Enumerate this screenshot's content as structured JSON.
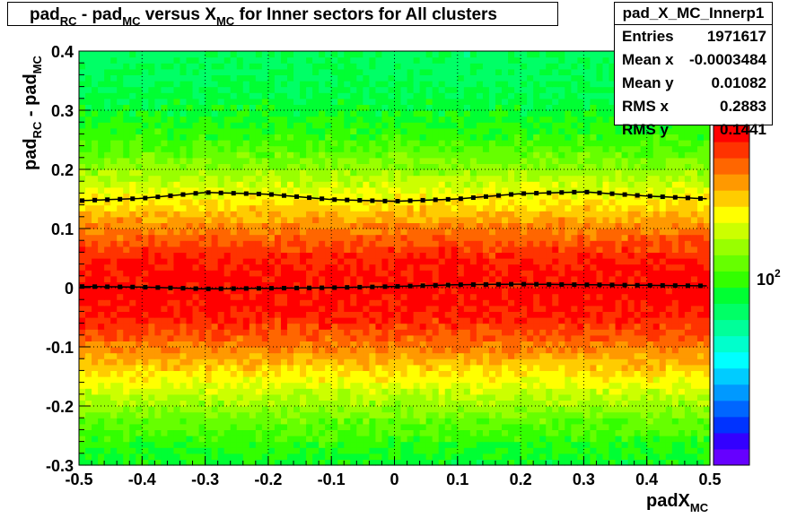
{
  "chart_data": {
    "type": "heatmap",
    "title": {
      "parts": [
        {
          "t": "pad"
        },
        {
          "t": "RC",
          "sub": true
        },
        {
          "t": " - pad"
        },
        {
          "t": "MC",
          "sub": true
        },
        {
          "t": " versus X"
        },
        {
          "t": "MC",
          "sub": true
        },
        {
          "t": " for Inner sectors for All clusters"
        }
      ]
    },
    "xlabel": {
      "parts": [
        {
          "t": "padX"
        },
        {
          "t": "MC",
          "sub": true
        }
      ]
    },
    "ylabel": {
      "parts": [
        {
          "t": "pad"
        },
        {
          "t": "RC",
          "sub": true
        },
        {
          "t": " - pad"
        },
        {
          "t": "MC",
          "sub": true
        }
      ]
    },
    "xlim": [
      -0.5,
      0.5
    ],
    "ylim": [
      -0.3,
      0.4
    ],
    "x_ticks": [
      "-0.5",
      "-0.4",
      "-0.3",
      "-0.2",
      "-0.1",
      "0",
      "0.1",
      "0.2",
      "0.3",
      "0.4",
      "0.5"
    ],
    "y_ticks": [
      "-0.3",
      "-0.2",
      "-0.1",
      "0",
      "0.1",
      "0.2",
      "0.3",
      "0.4"
    ],
    "grid": true,
    "colorbar": {
      "scale": "log",
      "label_base": "10",
      "label_exp": "2"
    },
    "density": {
      "center": 0.0,
      "sigma": 0.14
    },
    "series": [
      {
        "name": "mean profile",
        "x": [
          -0.5,
          -0.4,
          -0.3,
          -0.2,
          -0.1,
          0.0,
          0.1,
          0.2,
          0.3,
          0.4,
          0.5
        ],
        "y": [
          0.002,
          0.001,
          -0.002,
          -0.001,
          0.0,
          0.002,
          0.005,
          0.006,
          0.005,
          0.004,
          0.003
        ]
      },
      {
        "name": "RMS profile",
        "x": [
          -0.5,
          -0.4,
          -0.3,
          -0.2,
          -0.1,
          0.0,
          0.1,
          0.2,
          0.3,
          0.4,
          0.5
        ],
        "y": [
          0.147,
          0.151,
          0.161,
          0.158,
          0.149,
          0.146,
          0.15,
          0.159,
          0.162,
          0.155,
          0.15
        ]
      }
    ],
    "stats": {
      "name": "pad_X_MC_Innerp1",
      "rows": [
        {
          "k": "Entries",
          "v": "1971617"
        },
        {
          "k": "Mean x",
          "v": "-0.0003484"
        },
        {
          "k": "Mean y",
          "v": "0.01082"
        },
        {
          "k": "RMS x",
          "v": "0.2883"
        },
        {
          "k": "RMS y",
          "v": "0.1441"
        }
      ]
    }
  }
}
